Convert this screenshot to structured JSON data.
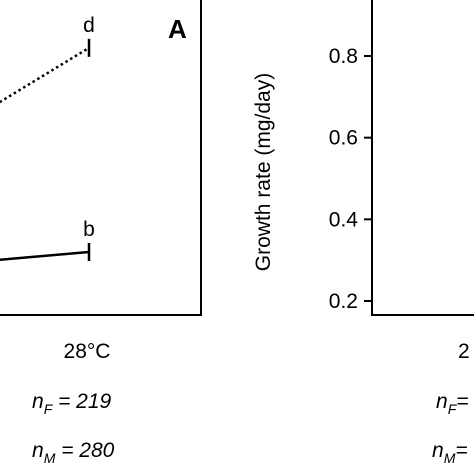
{
  "chart_data": [
    {
      "type": "line",
      "panel_label": "A",
      "xlabel": "",
      "ylabel": "",
      "categories": [
        "28°C"
      ],
      "series": [
        {
          "style": "dotted",
          "x_end": "28°C",
          "y_end": 0.82,
          "y_start_visible": 0.68,
          "group_letter": "d"
        },
        {
          "style": "solid",
          "x_end": "28°C",
          "y_end": 0.32,
          "y_start_visible": 0.3,
          "group_letter": "b"
        }
      ],
      "sample_sizes": [
        {
          "sub": "F",
          "text": " = 219"
        },
        {
          "sub": "M",
          "text": " = 280"
        }
      ],
      "ylim": [
        0.2,
        0.9
      ],
      "grid": false
    },
    {
      "type": "line",
      "ylabel": "Growth rate (mg/day)",
      "ylim": [
        0.2,
        0.9
      ],
      "yticks": [
        "0.2",
        "0.4",
        "0.6",
        "0.8"
      ],
      "partial_category_text": "2",
      "sample_sizes_partial": [
        {
          "sub": "F",
          "text": "="
        },
        {
          "sub": "M",
          "text": "="
        }
      ],
      "grid": false
    }
  ],
  "prefix": {
    "n": "n"
  }
}
